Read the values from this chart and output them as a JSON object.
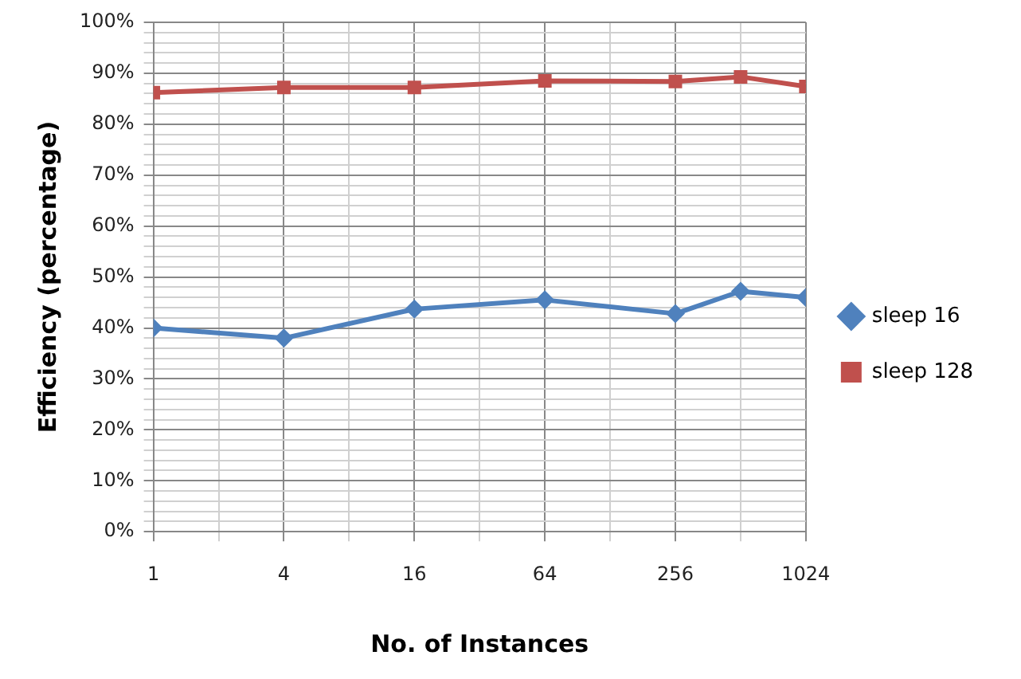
{
  "chart_data": {
    "type": "line",
    "xlabel": "No. of Instances",
    "ylabel": "Efficiency (percentage)",
    "x": [
      1,
      4,
      16,
      64,
      256,
      512,
      1024
    ],
    "log": "x",
    "xlim": [
      1,
      1024
    ],
    "xticks": [
      1,
      {
        "value": 2,
        "label": null
      },
      4,
      {
        "value": 8,
        "label": null
      },
      16,
      {
        "value": 32,
        "label": null
      },
      64,
      {
        "value": 128,
        "label": null
      },
      256,
      {
        "value": 512,
        "label": null
      },
      1024
    ],
    "ylim": [
      0,
      100
    ],
    "yticks": [
      {
        "value": 0,
        "label": "0%"
      },
      {
        "value": 2,
        "label": null
      },
      {
        "value": 4,
        "label": null
      },
      {
        "value": 6,
        "label": null
      },
      {
        "value": 8,
        "label": null
      },
      {
        "value": 10,
        "label": "10%"
      },
      {
        "value": 12,
        "label": null
      },
      {
        "value": 14,
        "label": null
      },
      {
        "value": 16,
        "label": null
      },
      {
        "value": 18,
        "label": null
      },
      {
        "value": 20,
        "label": "20%"
      },
      {
        "value": 22,
        "label": null
      },
      {
        "value": 24,
        "label": null
      },
      {
        "value": 26,
        "label": null
      },
      {
        "value": 28,
        "label": null
      },
      {
        "value": 30,
        "label": "30%"
      },
      {
        "value": 32,
        "label": null
      },
      {
        "value": 34,
        "label": null
      },
      {
        "value": 36,
        "label": null
      },
      {
        "value": 38,
        "label": null
      },
      {
        "value": 40,
        "label": "40%"
      },
      {
        "value": 42,
        "label": null
      },
      {
        "value": 44,
        "label": null
      },
      {
        "value": 46,
        "label": null
      },
      {
        "value": 48,
        "label": null
      },
      {
        "value": 50,
        "label": "50%"
      },
      {
        "value": 52,
        "label": null
      },
      {
        "value": 54,
        "label": null
      },
      {
        "value": 56,
        "label": null
      },
      {
        "value": 58,
        "label": null
      },
      {
        "value": 60,
        "label": "60%"
      },
      {
        "value": 62,
        "label": null
      },
      {
        "value": 64,
        "label": null
      },
      {
        "value": 66,
        "label": null
      },
      {
        "value": 68,
        "label": null
      },
      {
        "value": 70,
        "label": "70%"
      },
      {
        "value": 72,
        "label": null
      },
      {
        "value": 74,
        "label": null
      },
      {
        "value": 76,
        "label": null
      },
      {
        "value": 78,
        "label": null
      },
      {
        "value": 80,
        "label": "80%"
      },
      {
        "value": 82,
        "label": null
      },
      {
        "value": 84,
        "label": null
      },
      {
        "value": 86,
        "label": null
      },
      {
        "value": 88,
        "label": null
      },
      {
        "value": 90,
        "label": "90%"
      },
      {
        "value": 92,
        "label": null
      },
      {
        "value": 94,
        "label": null
      },
      {
        "value": 96,
        "label": null
      },
      {
        "value": 98,
        "label": null
      },
      {
        "value": 100,
        "label": "100%"
      }
    ],
    "grid": true,
    "legend": "right",
    "line_style": "solid",
    "series": [
      {
        "name": "sleep 16",
        "color": "#4f81bd",
        "marker": "diamond",
        "values": [
          40,
          38,
          43.7,
          45.5,
          42.8,
          47.2,
          46
        ]
      },
      {
        "name": "sleep 128",
        "color": "#c0504d",
        "marker": "square",
        "values": [
          86.2,
          87.2,
          87.2,
          88.5,
          88.4,
          89.3,
          87.4
        ]
      }
    ]
  }
}
